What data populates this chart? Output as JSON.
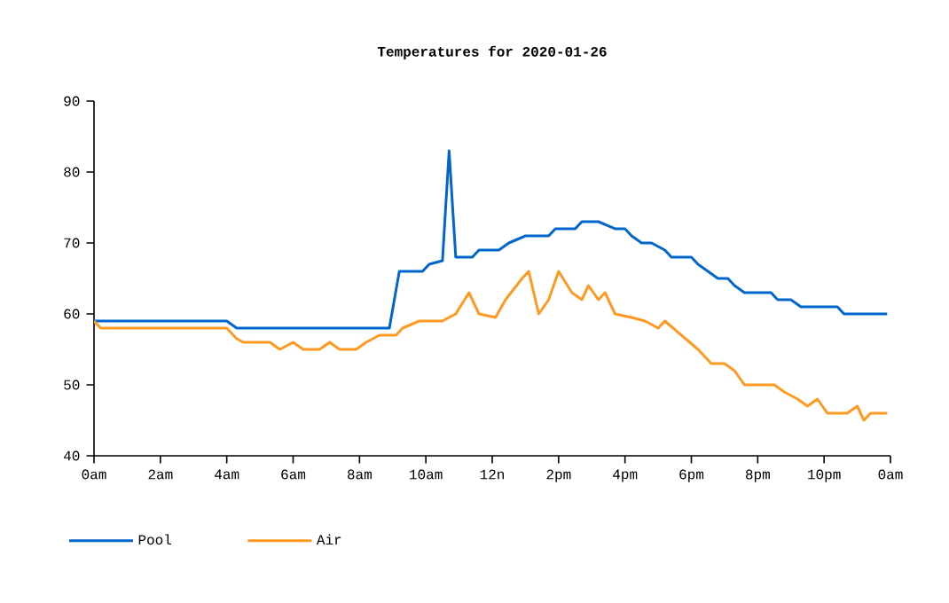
{
  "chart_data": {
    "type": "line",
    "title": "Temperatures for 2020-01-26",
    "xlim": [
      "2020-01-26T00:00",
      "2020-01-27T00:00"
    ],
    "xticks": [
      {
        "value": "2020-01-26T00:00",
        "label": "0am"
      },
      {
        "value": "2020-01-26T02:00",
        "label": "2am"
      },
      {
        "value": "2020-01-26T04:00",
        "label": "4am"
      },
      {
        "value": "2020-01-26T06:00",
        "label": "6am"
      },
      {
        "value": "2020-01-26T08:00",
        "label": "8am"
      },
      {
        "value": "2020-01-26T10:00",
        "label": "10am"
      },
      {
        "value": "2020-01-26T12:00",
        "label": "12n"
      },
      {
        "value": "2020-01-26T14:00",
        "label": "2pm"
      },
      {
        "value": "2020-01-26T16:00",
        "label": "4pm"
      },
      {
        "value": "2020-01-26T18:00",
        "label": "6pm"
      },
      {
        "value": "2020-01-26T20:00",
        "label": "8pm"
      },
      {
        "value": "2020-01-26T22:00",
        "label": "10pm"
      },
      {
        "value": "2020-01-27T00:00",
        "label": "0am"
      }
    ],
    "ylim": [
      40,
      90
    ],
    "yticks": [
      40,
      50,
      60,
      70,
      80,
      90
    ],
    "grid": false,
    "legend": "bottom left",
    "marker": "none",
    "line_style": "solid",
    "series": [
      {
        "name": "Pool",
        "color": "#0066cc",
        "x": [
          "2020-01-26T00:00",
          "2020-01-26T04:00",
          "2020-01-26T04:18",
          "2020-01-26T08:54",
          "2020-01-26T09:12",
          "2020-01-26T09:54",
          "2020-01-26T10:06",
          "2020-01-26T10:30",
          "2020-01-26T10:42",
          "2020-01-26T10:54",
          "2020-01-26T11:24",
          "2020-01-26T11:36",
          "2020-01-26T12:12",
          "2020-01-26T12:30",
          "2020-01-26T13:00",
          "2020-01-26T13:42",
          "2020-01-26T13:54",
          "2020-01-26T14:30",
          "2020-01-26T14:42",
          "2020-01-26T15:12",
          "2020-01-26T15:42",
          "2020-01-26T16:00",
          "2020-01-26T16:12",
          "2020-01-26T16:30",
          "2020-01-26T16:48",
          "2020-01-26T17:12",
          "2020-01-26T17:24",
          "2020-01-26T18:00",
          "2020-01-26T18:12",
          "2020-01-26T18:30",
          "2020-01-26T18:48",
          "2020-01-26T19:06",
          "2020-01-26T19:18",
          "2020-01-26T19:36",
          "2020-01-26T20:24",
          "2020-01-26T20:36",
          "2020-01-26T21:00",
          "2020-01-26T21:18",
          "2020-01-26T22:24",
          "2020-01-26T22:36",
          "2020-01-26T23:54"
        ],
        "values": [
          59,
          59,
          58,
          58,
          66,
          66,
          67,
          67.5,
          83,
          68,
          68,
          69,
          69,
          70,
          71,
          71,
          72,
          72,
          73,
          73,
          72,
          72,
          71,
          70,
          70,
          69,
          68,
          68,
          67,
          66,
          65,
          65,
          64,
          63,
          63,
          62,
          62,
          61,
          61,
          60,
          60
        ]
      },
      {
        "name": "Air",
        "color": "#ff9922",
        "x": [
          "2020-01-26T00:00",
          "2020-01-26T00:12",
          "2020-01-26T04:00",
          "2020-01-26T04:18",
          "2020-01-26T04:30",
          "2020-01-26T05:18",
          "2020-01-26T05:36",
          "2020-01-26T06:00",
          "2020-01-26T06:18",
          "2020-01-26T06:48",
          "2020-01-26T07:06",
          "2020-01-26T07:24",
          "2020-01-26T07:54",
          "2020-01-26T08:12",
          "2020-01-26T08:36",
          "2020-01-26T09:06",
          "2020-01-26T09:18",
          "2020-01-26T09:48",
          "2020-01-26T10:30",
          "2020-01-26T10:54",
          "2020-01-26T11:18",
          "2020-01-26T11:36",
          "2020-01-26T12:06",
          "2020-01-26T12:24",
          "2020-01-26T12:54",
          "2020-01-26T13:06",
          "2020-01-26T13:24",
          "2020-01-26T13:42",
          "2020-01-26T14:00",
          "2020-01-26T14:24",
          "2020-01-26T14:42",
          "2020-01-26T14:54",
          "2020-01-26T15:12",
          "2020-01-26T15:24",
          "2020-01-26T15:42",
          "2020-01-26T16:12",
          "2020-01-26T16:36",
          "2020-01-26T17:00",
          "2020-01-26T17:12",
          "2020-01-26T17:42",
          "2020-01-26T18:12",
          "2020-01-26T18:36",
          "2020-01-26T19:00",
          "2020-01-26T19:18",
          "2020-01-26T19:36",
          "2020-01-26T20:30",
          "2020-01-26T20:48",
          "2020-01-26T21:12",
          "2020-01-26T21:30",
          "2020-01-26T21:48",
          "2020-01-26T22:06",
          "2020-01-26T22:42",
          "2020-01-26T23:00",
          "2020-01-26T23:12",
          "2020-01-26T23:24",
          "2020-01-26T23:54"
        ],
        "values": [
          59,
          58,
          58,
          56.5,
          56,
          56,
          55,
          56,
          55,
          55,
          56,
          55,
          55,
          56,
          57,
          57,
          58,
          59,
          59,
          60,
          63,
          60,
          59.5,
          62,
          65,
          66,
          60,
          62,
          66,
          63,
          62,
          64,
          62,
          63,
          60,
          59.5,
          59,
          58,
          59,
          57,
          55,
          53,
          53,
          52,
          50,
          50,
          49,
          48,
          47,
          48,
          46,
          46,
          47,
          45,
          46,
          46
        ]
      }
    ]
  }
}
